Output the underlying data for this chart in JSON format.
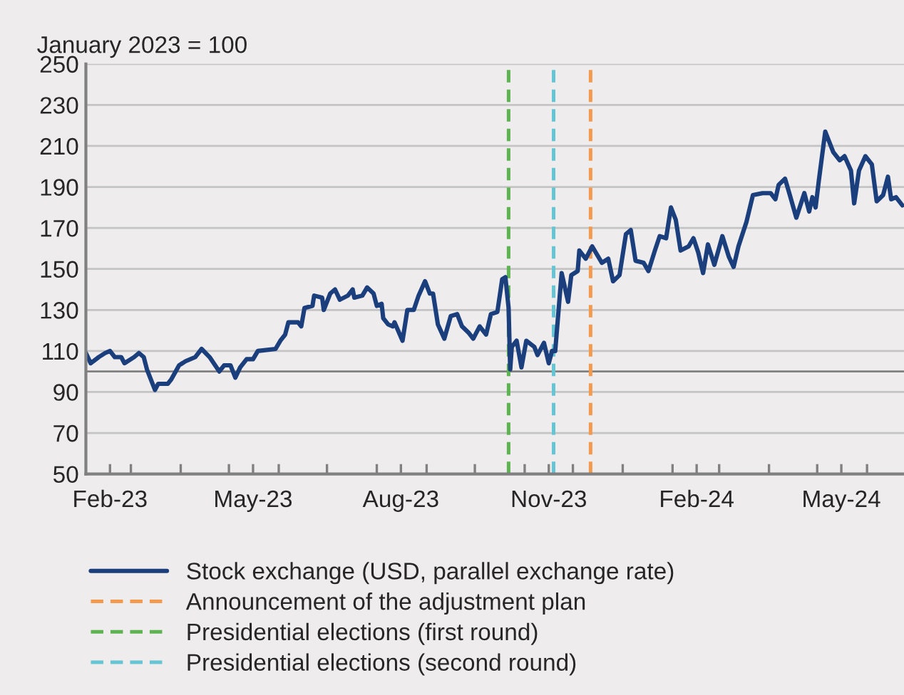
{
  "chart_data": {
    "type": "line",
    "ylabel": "January 2023 = 100",
    "x": [
      "2023-02-01",
      "2023-02-04",
      "2023-02-09",
      "2023-02-13",
      "2023-02-16",
      "2023-02-19",
      "2023-02-23",
      "2023-02-25",
      "2023-03-03",
      "2023-03-06",
      "2023-03-09",
      "2023-03-11",
      "2023-03-16",
      "2023-03-18",
      "2023-03-24",
      "2023-03-26",
      "2023-03-31",
      "2023-04-04",
      "2023-04-10",
      "2023-04-14",
      "2023-04-19",
      "2023-04-25",
      "2023-04-28",
      "2023-05-02",
      "2023-05-05",
      "2023-05-08",
      "2023-05-12",
      "2023-05-16",
      "2023-05-19",
      "2023-05-30",
      "2023-06-02",
      "2023-06-05",
      "2023-06-07",
      "2023-06-13",
      "2023-06-15",
      "2023-06-17",
      "2023-06-22",
      "2023-06-23",
      "2023-06-28",
      "2023-06-29",
      "2023-07-03",
      "2023-07-06",
      "2023-07-09",
      "2023-07-14",
      "2023-07-17",
      "2023-07-18",
      "2023-07-23",
      "2023-07-26",
      "2023-07-30",
      "2023-08-01",
      "2023-08-04",
      "2023-08-05",
      "2023-08-08",
      "2023-08-11",
      "2023-08-12",
      "2023-08-17",
      "2023-08-20",
      "2023-08-24",
      "2023-08-27",
      "2023-08-31",
      "2023-09-03",
      "2023-09-05",
      "2023-09-08",
      "2023-09-12",
      "2023-09-16",
      "2023-09-20",
      "2023-09-23",
      "2023-09-27",
      "2023-09-30",
      "2023-10-04",
      "2023-10-08",
      "2023-10-11",
      "2023-10-15",
      "2023-10-18",
      "2023-10-20",
      "2023-10-22",
      "2023-10-23",
      "2023-10-24",
      "2023-10-27",
      "2023-10-30",
      "2023-11-02",
      "2023-11-07",
      "2023-11-09",
      "2023-11-13",
      "2023-11-16",
      "2023-11-18",
      "2023-11-20",
      "2023-11-24",
      "2023-11-28",
      "2023-11-30",
      "2023-12-04",
      "2023-12-05",
      "2023-12-09",
      "2023-12-13",
      "2023-12-19",
      "2023-12-23",
      "2023-12-26",
      "2023-12-30",
      "2024-01-03",
      "2024-01-06",
      "2024-01-09",
      "2024-01-14",
      "2024-01-17",
      "2024-01-21",
      "2024-01-24",
      "2024-01-28",
      "2024-01-31",
      "2024-02-03",
      "2024-02-06",
      "2024-02-11",
      "2024-02-14",
      "2024-02-17",
      "2024-02-20",
      "2024-02-23",
      "2024-02-27",
      "2024-03-03",
      "2024-03-07",
      "2024-03-10",
      "2024-03-13",
      "2024-03-18",
      "2024-03-22",
      "2024-03-28",
      "2024-04-02",
      "2024-04-05",
      "2024-04-07",
      "2024-04-11",
      "2024-04-14",
      "2024-04-18",
      "2024-04-23",
      "2024-04-26",
      "2024-04-28",
      "2024-04-30",
      "2024-05-02",
      "2024-05-06",
      "2024-05-11",
      "2024-05-15",
      "2024-05-18",
      "2024-05-22",
      "2024-05-24",
      "2024-05-27",
      "2024-05-31",
      "2024-06-04",
      "2024-06-07",
      "2024-06-11",
      "2024-06-14",
      "2024-06-16",
      "2024-06-19",
      "2024-06-23"
    ],
    "series": [
      {
        "name": "Stock exchange (USD, parallel exchange rate)",
        "color": "#1b3f7c",
        "values": [
          109,
          104,
          107,
          109,
          110,
          107,
          107,
          104,
          107,
          109,
          107,
          101,
          91,
          94,
          94,
          96,
          103,
          105,
          107,
          111,
          107,
          100,
          103,
          103,
          97,
          102,
          106,
          106,
          110,
          111,
          115,
          118,
          124,
          124,
          122,
          131,
          132,
          137,
          136,
          130,
          138,
          140,
          135,
          137,
          140,
          136,
          137,
          141,
          138,
          132,
          133,
          126,
          123,
          122,
          124,
          115,
          130,
          130,
          137,
          144,
          138,
          138,
          123,
          116,
          127,
          128,
          122,
          119,
          116,
          122,
          118,
          128,
          129,
          145,
          146,
          131,
          101,
          112,
          115,
          102,
          115,
          112,
          108,
          114,
          104,
          110,
          110,
          148,
          134,
          147,
          149,
          159,
          155,
          161,
          153,
          155,
          144,
          147,
          167,
          169,
          154,
          153,
          149,
          159,
          166,
          165,
          180,
          174,
          159,
          161,
          165,
          158,
          148,
          162,
          152,
          166,
          156,
          151,
          161,
          173,
          186,
          187,
          187,
          184,
          191,
          194,
          186,
          175,
          187,
          178,
          185,
          180,
          193,
          217,
          207,
          203,
          205,
          198,
          182,
          198,
          205,
          201,
          183,
          186,
          195,
          184,
          185,
          181
        ]
      }
    ],
    "xlim": [
      "2023-02-01",
      "2024-06-24"
    ],
    "xticks": [
      {
        "value": "2023-02-16",
        "label": "Feb-23"
      },
      {
        "value": "2023-03-01",
        "label": null
      },
      {
        "value": "2023-04-01",
        "label": null
      },
      {
        "value": "2023-05-01",
        "label": null
      },
      {
        "value": "2023-05-16",
        "label": "May-23"
      },
      {
        "value": "2023-06-01",
        "label": null
      },
      {
        "value": "2023-07-01",
        "label": null
      },
      {
        "value": "2023-08-01",
        "label": null
      },
      {
        "value": "2023-08-16",
        "label": "Aug-23"
      },
      {
        "value": "2023-09-01",
        "label": null
      },
      {
        "value": "2023-10-01",
        "label": null
      },
      {
        "value": "2023-11-01",
        "label": null
      },
      {
        "value": "2023-11-16",
        "label": "Nov-23"
      },
      {
        "value": "2023-12-01",
        "label": null
      },
      {
        "value": "2024-01-01",
        "label": null
      },
      {
        "value": "2024-02-01",
        "label": null
      },
      {
        "value": "2024-02-16",
        "label": "Feb-24"
      },
      {
        "value": "2024-03-01",
        "label": null
      },
      {
        "value": "2024-04-01",
        "label": null
      },
      {
        "value": "2024-05-01",
        "label": null
      },
      {
        "value": "2024-05-16",
        "label": "May-24"
      },
      {
        "value": "2024-06-01",
        "label": null
      }
    ],
    "ylim": [
      50,
      250
    ],
    "yticks": [
      50,
      70,
      90,
      110,
      130,
      150,
      170,
      190,
      210,
      230,
      250
    ],
    "ref_lines": [
      {
        "axis": "y",
        "value": 100,
        "color": "#808080",
        "line_style": "solid"
      },
      {
        "axis": "x",
        "value": "2023-12-12",
        "label": "Announcement of the adjustment plan",
        "color": "#f39a4f",
        "line_style": "dashed"
      },
      {
        "axis": "x",
        "value": "2023-10-22",
        "label": "Presidential elections (first round)",
        "color": "#5db350",
        "line_style": "dashed"
      },
      {
        "axis": "x",
        "value": "2023-11-19",
        "label": "Presidential elections (second round)",
        "color": "#66c5d4",
        "line_style": "dashed"
      }
    ],
    "grid": "y",
    "legend": "bottom",
    "line_style": "solid",
    "marker": "none"
  }
}
